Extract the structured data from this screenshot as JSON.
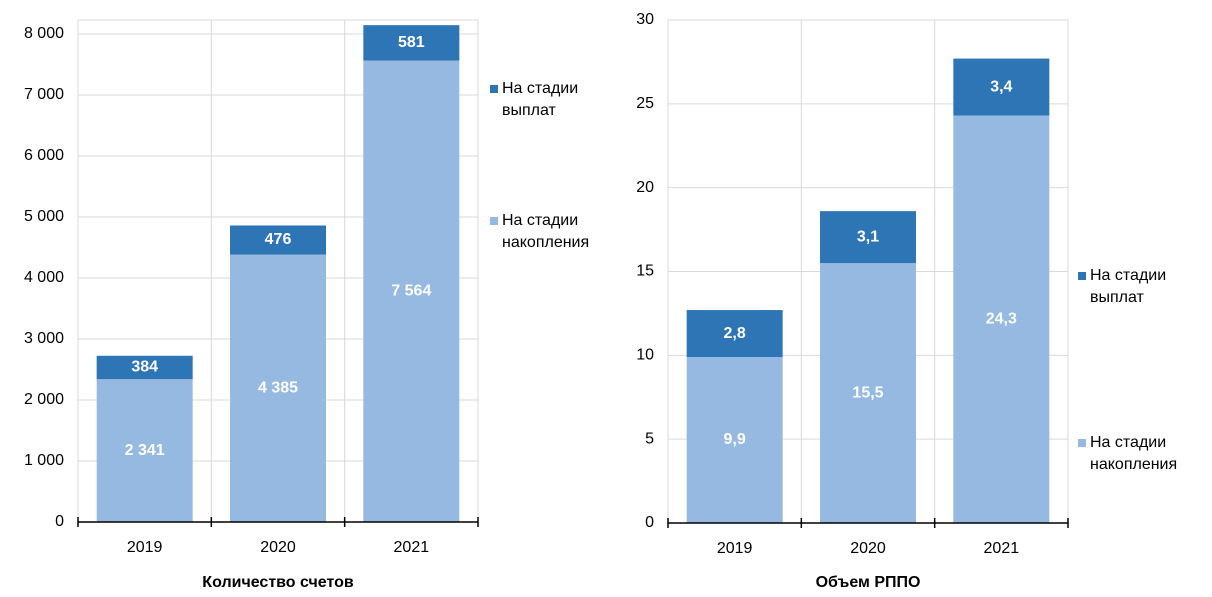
{
  "chart_data": [
    {
      "type": "bar",
      "stacked": true,
      "xlabel": "Количество счетов",
      "categories": [
        "2019",
        "2020",
        "2021"
      ],
      "series": [
        {
          "name": "На стадии накопления",
          "color": "#95b9e0",
          "values": [
            2341,
            4385,
            7564
          ],
          "value_labels": [
            "2 341",
            "4 385",
            "7 564"
          ]
        },
        {
          "name": "На стадии выплат",
          "color": "#2e75b6",
          "values": [
            384,
            476,
            581
          ]
        }
      ],
      "ylim": [
        0,
        8000
      ],
      "yticks": [
        {
          "value": 0,
          "label": "0"
        },
        {
          "value": 1000,
          "label": "1 000"
        },
        {
          "value": 2000,
          "label": "2 000"
        },
        {
          "value": 3000,
          "label": "3 000"
        },
        {
          "value": 4000,
          "label": "4 000"
        },
        {
          "value": 5000,
          "label": "5 000"
        },
        {
          "value": 6000,
          "label": "6 000"
        },
        {
          "value": 7000,
          "label": "7 000"
        },
        {
          "value": 8000,
          "label": "8 000"
        }
      ],
      "grid": true,
      "legend": "right"
    },
    {
      "type": "bar",
      "stacked": true,
      "xlabel": "Объем РППО",
      "categories": [
        "2019",
        "2020",
        "2021"
      ],
      "series": [
        {
          "name": "На стадии накопления",
          "color": "#95b9e0",
          "values": [
            9.9,
            15.5,
            24.3
          ],
          "value_labels": [
            "9,9",
            "15,5",
            "24,3"
          ]
        },
        {
          "name": "На стадии выплат",
          "color": "#2e75b6",
          "values": [
            2.8,
            3.1,
            3.4
          ],
          "value_labels": [
            "2,8",
            "3,1",
            "3,4"
          ]
        }
      ],
      "ylim": [
        0,
        30
      ],
      "yticks": [
        0,
        5,
        10,
        15,
        20,
        25,
        30
      ],
      "grid": true,
      "legend": "right"
    }
  ]
}
